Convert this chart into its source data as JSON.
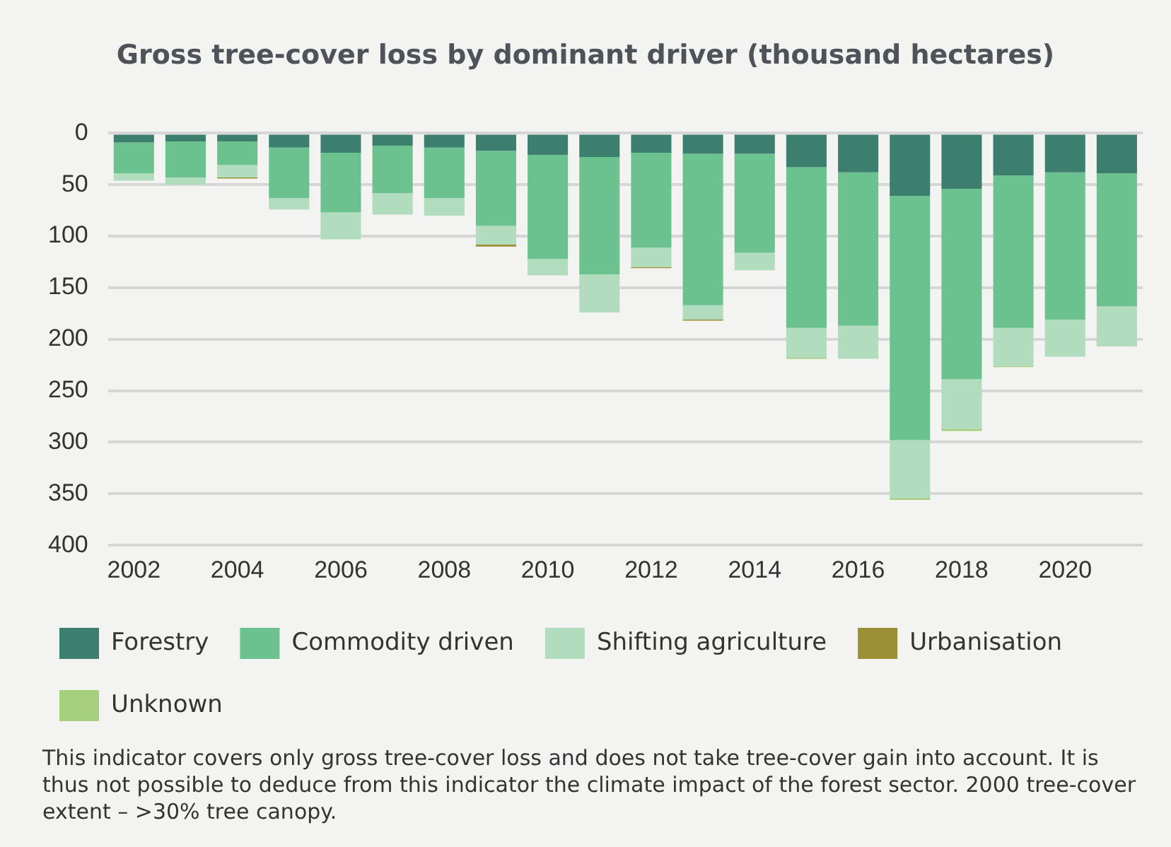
{
  "chart_data": {
    "type": "bar",
    "title": "Gross tree-cover loss by dominant driver (thousand hectares)",
    "categories": [
      "2002",
      null,
      "2004",
      null,
      "2006",
      null,
      "2008",
      null,
      "2010",
      null,
      "2012",
      null,
      "2014",
      null,
      "2016",
      null,
      "2018",
      null,
      "2020",
      null
    ],
    "stacked": true,
    "series": [
      {
        "name": "Forestry",
        "color": "#3d7f6f",
        "values": [
          9,
          8,
          8,
          14,
          19,
          12,
          14,
          17,
          21,
          23,
          19,
          20,
          20,
          33,
          38,
          61,
          54,
          41,
          38,
          39
        ]
      },
      {
        "name": "Commodity driven",
        "color": "#6cc28f",
        "values": [
          30,
          35,
          23,
          49,
          58,
          46,
          49,
          73,
          101,
          114,
          92,
          147,
          96,
          156,
          149,
          237,
          185,
          148,
          143,
          129
        ]
      },
      {
        "name": "Shifting agriculture",
        "color": "#b1dcbd",
        "values": [
          7,
          7,
          12,
          11,
          26,
          21,
          17,
          18,
          16,
          37,
          19,
          14,
          17,
          29,
          32,
          56,
          48,
          37,
          36,
          39
        ]
      },
      {
        "name": "Urbanisation",
        "color": "#9a8f35",
        "values": [
          null,
          null,
          1,
          null,
          null,
          null,
          null,
          2,
          null,
          null,
          1,
          1,
          null,
          null,
          null,
          null,
          null,
          null,
          null,
          null
        ]
      },
      {
        "name": "Unknown",
        "color": "#a5cf7d",
        "values": [
          null,
          null,
          null,
          null,
          null,
          null,
          null,
          null,
          null,
          null,
          null,
          null,
          null,
          1,
          null,
          2,
          2,
          1,
          null,
          null
        ]
      }
    ],
    "ylim": [
      400,
      0
    ],
    "yticks": [
      0,
      50,
      100,
      150,
      200,
      250,
      300,
      350,
      400
    ],
    "grid": "y",
    "legend": "bottom",
    "annotations": [
      "This indicator covers only gross tree-cover loss and does not take tree-cover gain into account. It is thus not possible to deduce from this indicator the climate impact of the forest sector. 2000 tree-cover extent – >30% tree canopy."
    ]
  }
}
